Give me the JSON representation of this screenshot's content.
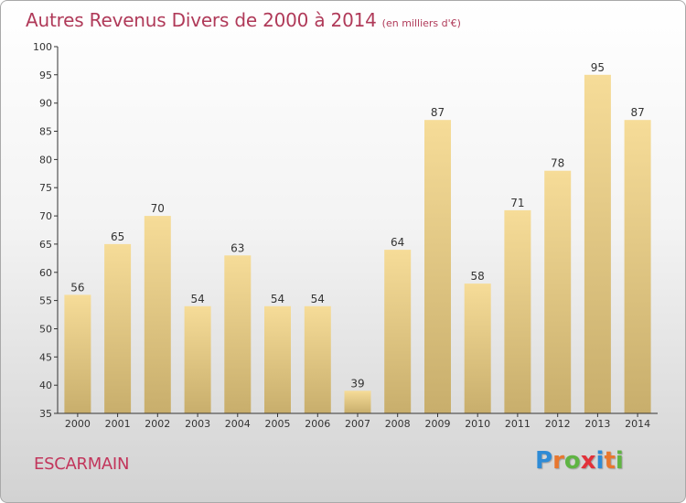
{
  "header": {
    "title": "Autres Revenus Divers de 2000 à 2014",
    "subtitle": "(en milliers d'€)"
  },
  "footer": {
    "commune": "ESCARMAIN",
    "logo": {
      "text": "Proxiti",
      "letters": [
        {
          "char": "P",
          "color": "#2e8bd6"
        },
        {
          "char": "r",
          "color": "#e8772e"
        },
        {
          "char": "o",
          "color": "#5fb443"
        },
        {
          "char": "x",
          "color": "#e2313a"
        },
        {
          "char": "i",
          "color": "#2e8bd6"
        },
        {
          "char": "t",
          "color": "#e8772e"
        },
        {
          "char": "i",
          "color": "#5fb443"
        }
      ]
    }
  },
  "chart_data": {
    "type": "bar",
    "title": "Autres Revenus Divers de 2000 à 2014",
    "subtitle": "(en milliers d'€)",
    "xlabel": "",
    "ylabel": "",
    "categories": [
      "2000",
      "2001",
      "2002",
      "2003",
      "2004",
      "2005",
      "2006",
      "2007",
      "2008",
      "2009",
      "2010",
      "2011",
      "2012",
      "2013",
      "2014"
    ],
    "values": [
      56,
      65,
      70,
      54,
      63,
      54,
      54,
      39,
      64,
      87,
      58,
      71,
      78,
      95,
      87
    ],
    "ylim": [
      35,
      100
    ],
    "yticks": [
      35,
      40,
      45,
      50,
      55,
      60,
      65,
      70,
      75,
      80,
      85,
      90,
      95,
      100
    ],
    "grid": false,
    "data_labels": true,
    "colors": {
      "bar_light": "#f6dc98",
      "bar_dark": "#c8ae6c",
      "title": "#b03a59",
      "commune": "#c2355b",
      "axis": "#333333"
    }
  }
}
